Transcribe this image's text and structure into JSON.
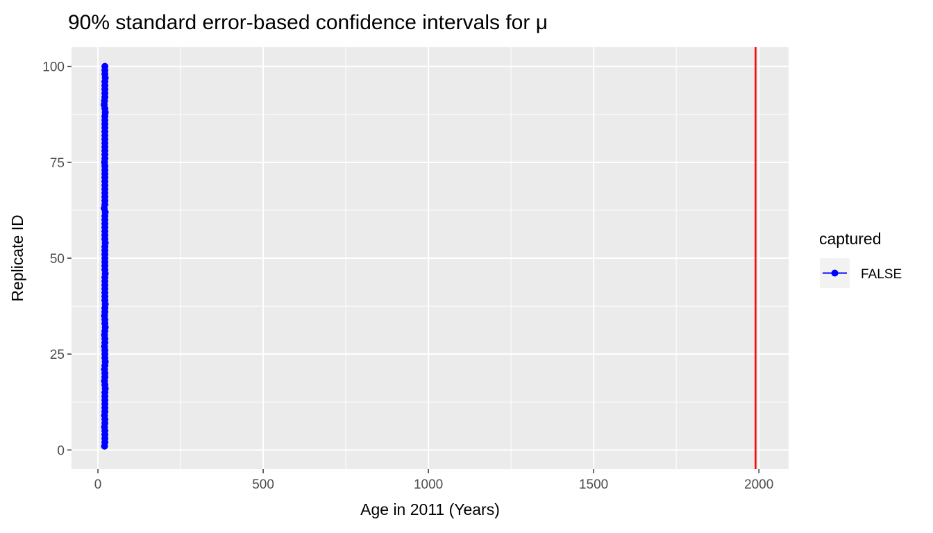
{
  "chart_data": {
    "type": "scatter",
    "title": "90% standard error-based confidence intervals for μ",
    "xlabel": "Age in 2011 (Years)",
    "ylabel": "Replicate ID",
    "xlim": [
      -80,
      2090
    ],
    "ylim": [
      -5,
      105
    ],
    "x_ticks": [
      0,
      500,
      1000,
      1500,
      2000
    ],
    "x_tick_labels": [
      "0",
      "500",
      "1000",
      "1500",
      "2000"
    ],
    "y_ticks": [
      0,
      25,
      50,
      75,
      100
    ],
    "y_tick_labels": [
      "0",
      "25",
      "50",
      "75",
      "100"
    ],
    "grid": true,
    "reference_line": {
      "x": 1990,
      "color": "#FF0000"
    },
    "legend": {
      "title": "captured",
      "position": "right",
      "entries": [
        {
          "label": "FALSE",
          "color": "#0000FF"
        }
      ]
    },
    "series": [
      {
        "name": "FALSE",
        "color": "#0000FF",
        "replicate_id": [
          1,
          2,
          3,
          4,
          5,
          6,
          7,
          8,
          9,
          10,
          11,
          12,
          13,
          14,
          15,
          16,
          17,
          18,
          19,
          20,
          21,
          22,
          23,
          24,
          25,
          26,
          27,
          28,
          29,
          30,
          31,
          32,
          33,
          34,
          35,
          36,
          37,
          38,
          39,
          40,
          41,
          42,
          43,
          44,
          45,
          46,
          47,
          48,
          49,
          50,
          51,
          52,
          53,
          54,
          55,
          56,
          57,
          58,
          59,
          60,
          61,
          62,
          63,
          64,
          65,
          66,
          67,
          68,
          69,
          70,
          71,
          72,
          73,
          74,
          75,
          76,
          77,
          78,
          79,
          80,
          81,
          82,
          83,
          84,
          85,
          86,
          87,
          88,
          89,
          90,
          91,
          92,
          93,
          94,
          95,
          96,
          97,
          98,
          99,
          100
        ],
        "lower": [
          17,
          19,
          18,
          18,
          19,
          18,
          18,
          18,
          17,
          18,
          18,
          19,
          18,
          19,
          18,
          19,
          18,
          17,
          18,
          18,
          17,
          18,
          19,
          18,
          18,
          19,
          18,
          19,
          18,
          17,
          18,
          19,
          18,
          18,
          17,
          18,
          18,
          19,
          18,
          18,
          18,
          18,
          19,
          18,
          18,
          19,
          18,
          18,
          18,
          19,
          18,
          18,
          18,
          19,
          18,
          18,
          19,
          18,
          18,
          18,
          18,
          19,
          17,
          18,
          18,
          19,
          18,
          18,
          18,
          18,
          19,
          18,
          18,
          19,
          17,
          18,
          18,
          18,
          19,
          18,
          18,
          19,
          18,
          18,
          18,
          18,
          18,
          19,
          18,
          16,
          17,
          18,
          18,
          18,
          19,
          18,
          19,
          18,
          19,
          19
        ],
        "estimate": [
          20,
          21,
          21,
          21,
          21,
          20,
          21,
          21,
          20,
          21,
          21,
          21,
          21,
          21,
          21,
          22,
          21,
          20,
          21,
          21,
          20,
          21,
          22,
          21,
          21,
          21,
          20,
          21,
          21,
          20,
          21,
          22,
          21,
          21,
          20,
          21,
          21,
          22,
          21,
          21,
          21,
          21,
          21,
          21,
          21,
          22,
          21,
          21,
          21,
          21,
          21,
          21,
          21,
          22,
          21,
          21,
          21,
          21,
          21,
          21,
          21,
          22,
          19,
          21,
          21,
          21,
          21,
          21,
          21,
          21,
          21,
          21,
          21,
          21,
          20,
          21,
          21,
          21,
          21,
          21,
          21,
          21,
          21,
          21,
          21,
          21,
          21,
          22,
          21,
          19,
          20,
          21,
          21,
          21,
          21,
          21,
          22,
          21,
          21,
          21
        ],
        "upper": [
          23,
          23,
          24,
          23,
          24,
          23,
          23,
          23,
          22,
          23,
          23,
          24,
          23,
          24,
          23,
          24,
          23,
          22,
          23,
          23,
          22,
          24,
          24,
          23,
          24,
          24,
          23,
          23,
          23,
          22,
          23,
          24,
          23,
          23,
          22,
          23,
          24,
          25,
          23,
          24,
          23,
          23,
          23,
          23,
          23,
          24,
          23,
          23,
          23,
          24,
          23,
          23,
          23,
          25,
          23,
          23,
          24,
          23,
          23,
          23,
          24,
          24,
          21,
          23,
          23,
          24,
          23,
          23,
          23,
          24,
          23,
          24,
          23,
          23,
          22,
          24,
          23,
          23,
          23,
          24,
          23,
          23,
          23,
          23,
          23,
          24,
          23,
          25,
          23,
          21,
          22,
          24,
          23,
          23,
          24,
          23,
          24,
          23,
          23,
          23
        ]
      }
    ]
  }
}
